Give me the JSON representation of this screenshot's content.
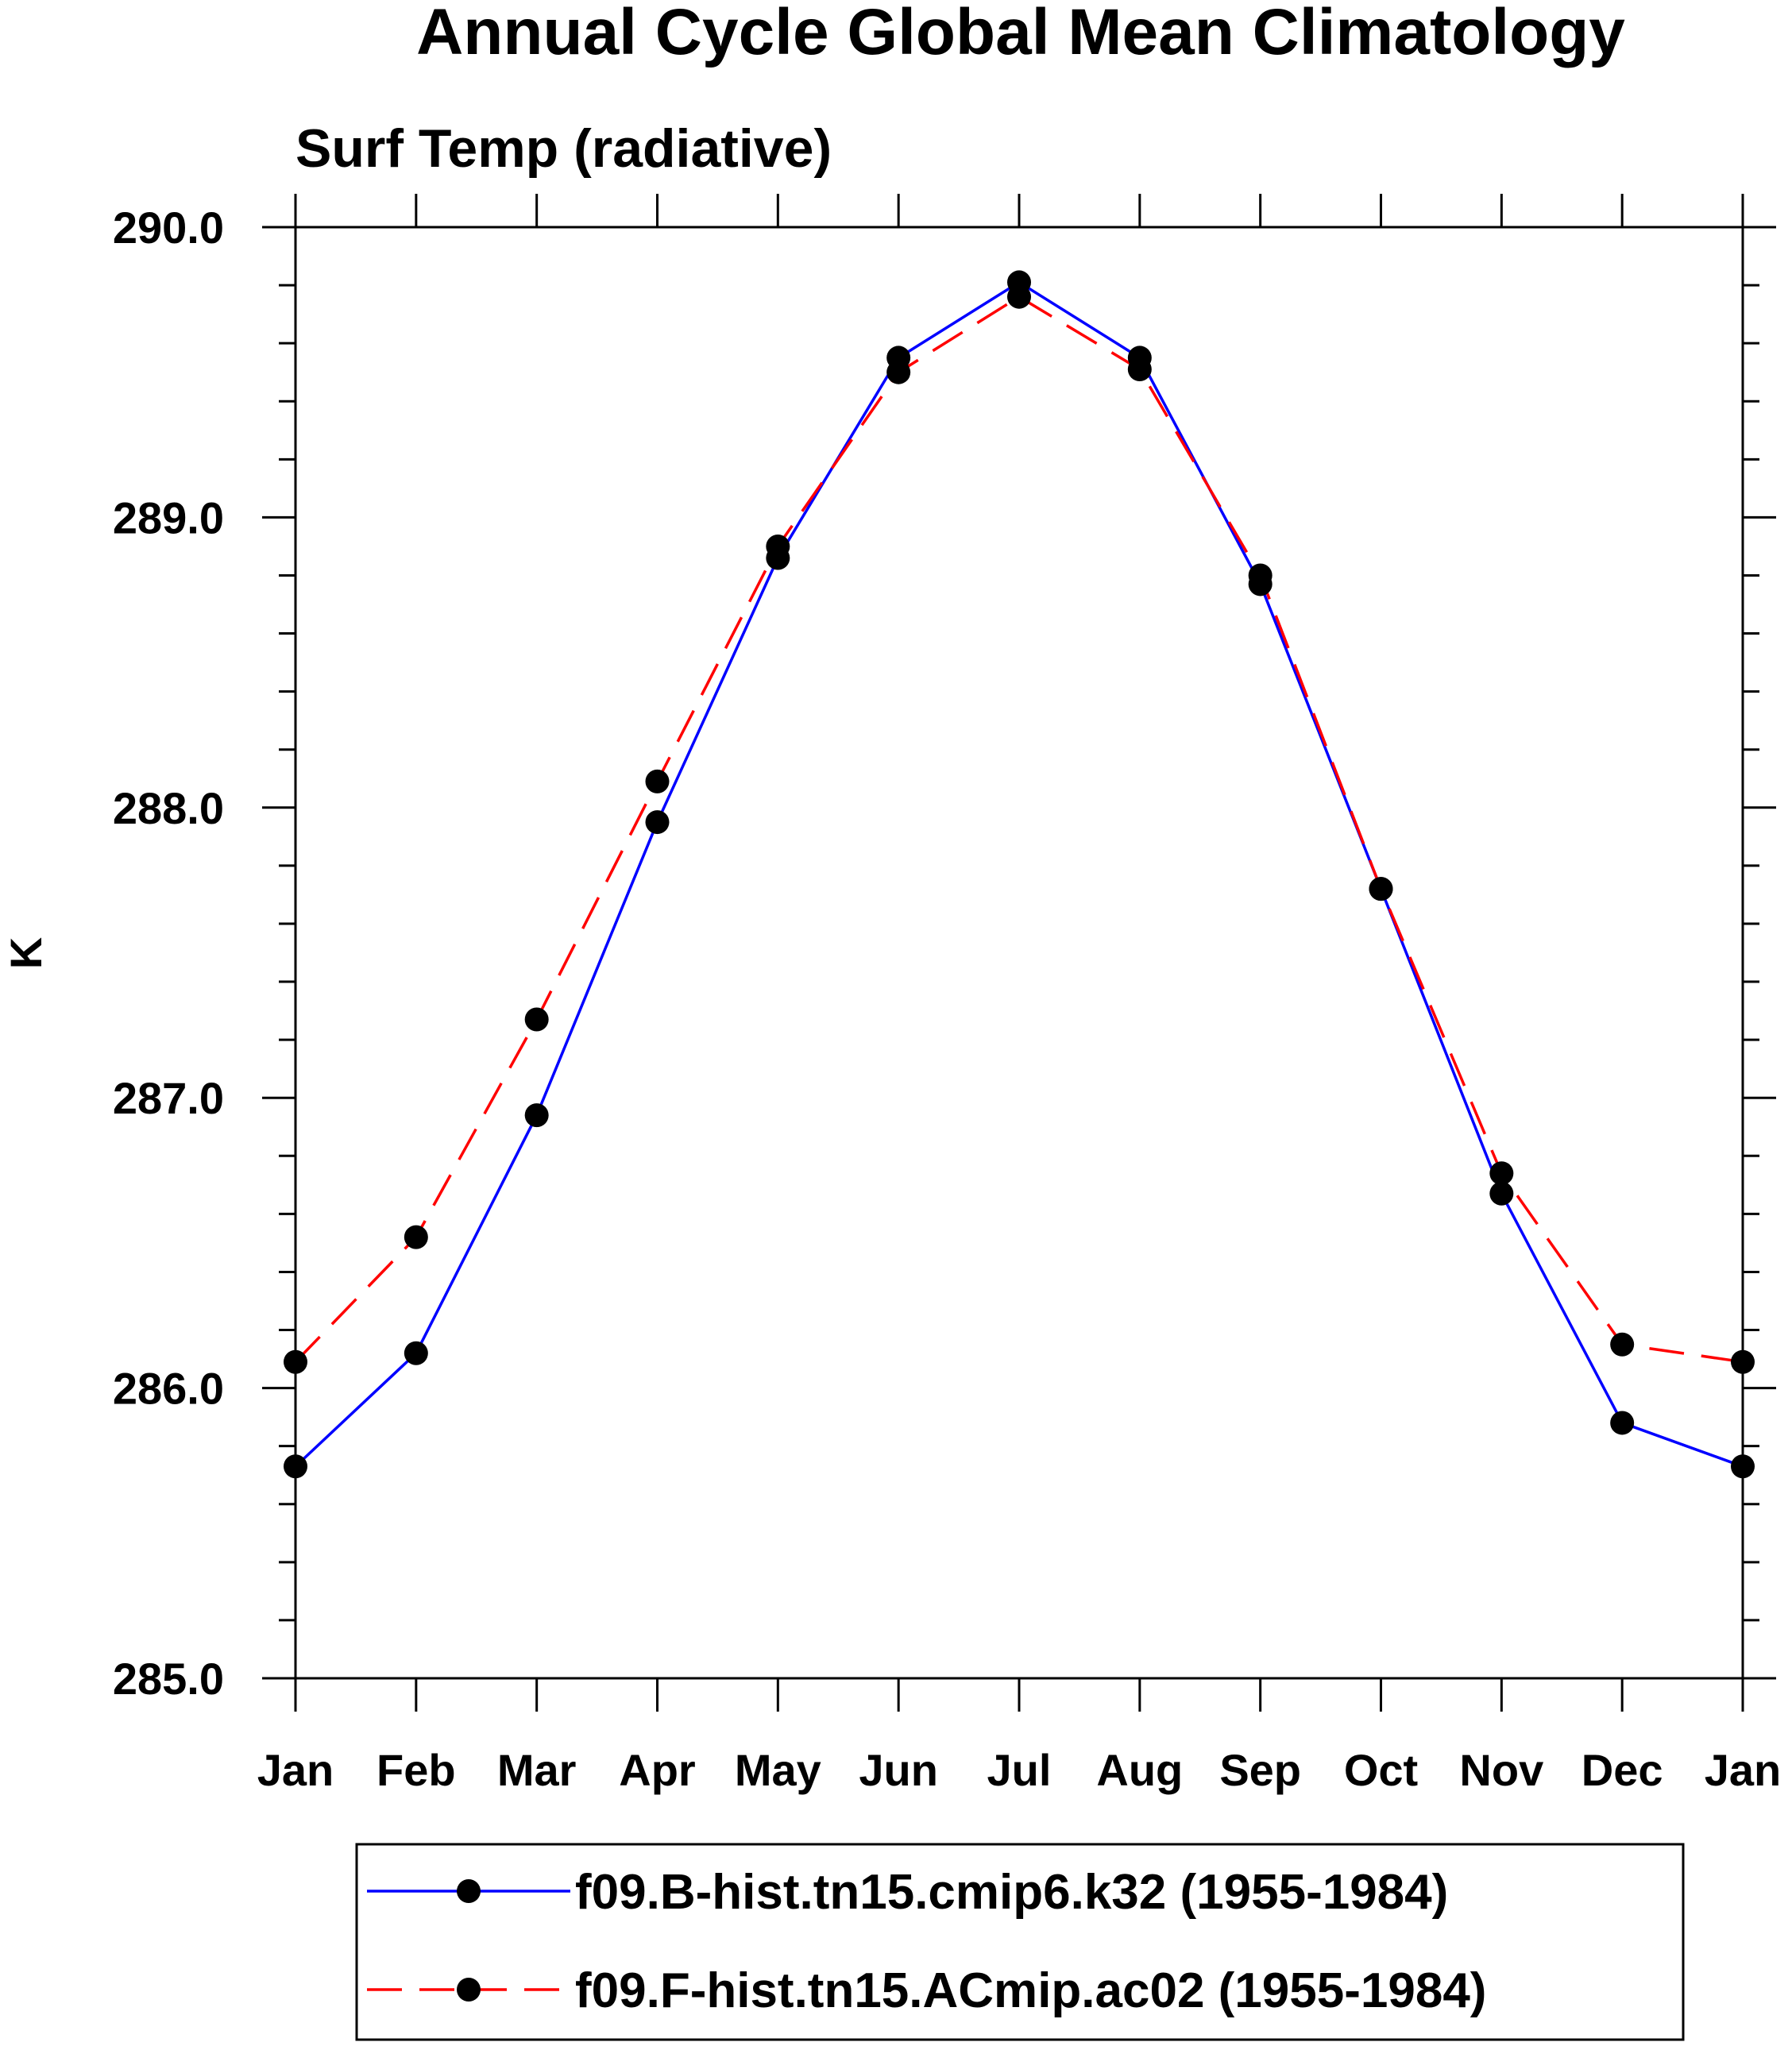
{
  "chart_data": {
    "type": "line",
    "title": "Annual Cycle Global Mean Climatology",
    "subtitle": "Surf Temp (radiative)",
    "xlabel": "",
    "ylabel": "K",
    "categories": [
      "Jan",
      "Feb",
      "Mar",
      "Apr",
      "May",
      "Jun",
      "Jul",
      "Aug",
      "Sep",
      "Oct",
      "Nov",
      "Dec",
      "Jan"
    ],
    "ylim": [
      285.0,
      290.0
    ],
    "yticks": [
      285.0,
      286.0,
      287.0,
      288.0,
      289.0,
      290.0
    ],
    "ytick_labels": [
      "285.0",
      "286.0",
      "287.0",
      "288.0",
      "289.0",
      "290.0"
    ],
    "y_minor_step": 0.2,
    "series": [
      {
        "name": "f09.B-hist.tn15.cmip6.k32 (1955-1984)",
        "color": "#0000ff",
        "dash": "solid",
        "marker_color": "#000000",
        "values": [
          285.73,
          286.12,
          286.94,
          287.95,
          288.86,
          289.55,
          289.81,
          289.55,
          288.77,
          287.72,
          286.67,
          285.88,
          285.73
        ]
      },
      {
        "name": "f09.F-hist.tn15.ACmip.ac02 (1955-1984)",
        "color": "#ff0000",
        "dash": "dashed",
        "marker_color": "#000000",
        "values": [
          286.09,
          286.52,
          287.27,
          288.09,
          288.9,
          289.5,
          289.76,
          289.51,
          288.8,
          287.72,
          286.74,
          286.15,
          286.09
        ]
      }
    ],
    "legend_position": "bottom"
  }
}
